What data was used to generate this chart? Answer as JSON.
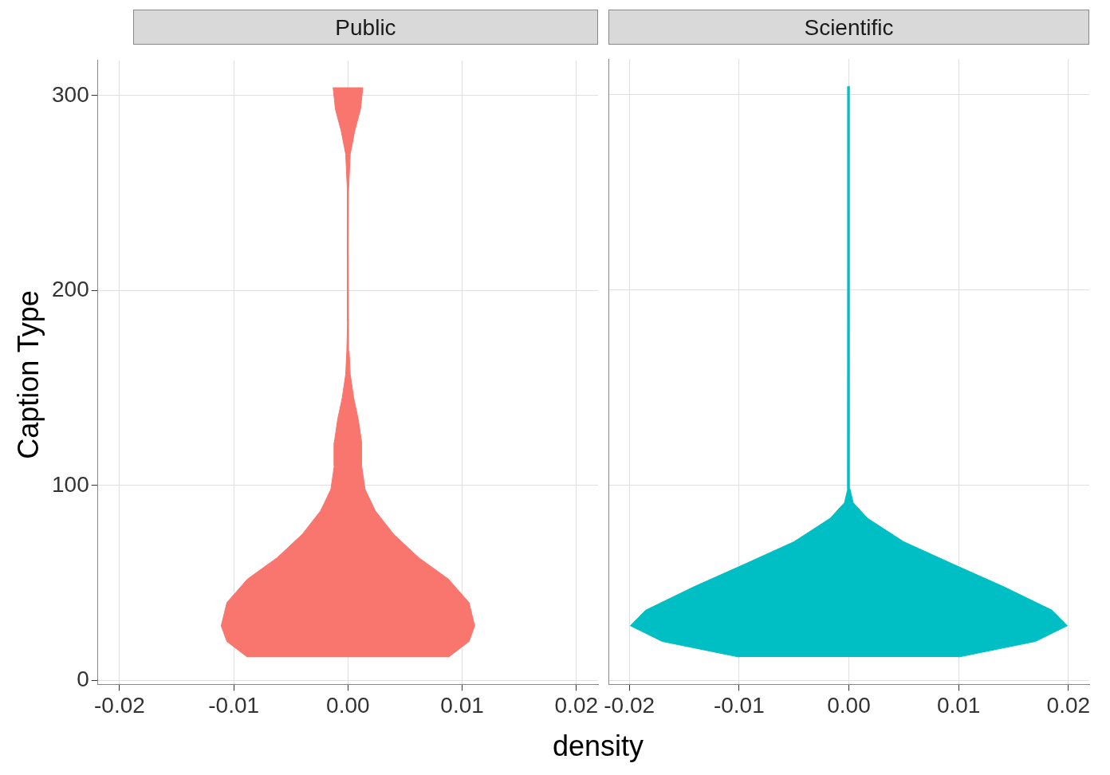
{
  "chart_data": [
    {
      "type": "area",
      "title": "Public",
      "xlabel": "density",
      "ylabel": "Caption Type",
      "xlim": [
        -0.0219,
        0.0219
      ],
      "ylim": [
        -2,
        318
      ],
      "xticks": [
        {
          "value": -0.02,
          "label": "-0.02"
        },
        {
          "value": -0.01,
          "label": "-0.01"
        },
        {
          "value": 0,
          "label": "0.00"
        },
        {
          "value": 0.01,
          "label": "0.01"
        },
        {
          "value": 0.02,
          "label": "0.02"
        }
      ],
      "yticks": [
        0,
        100,
        200,
        300
      ],
      "grid": true,
      "series": [
        {
          "color": "#f8766d",
          "x": [
            0.0088,
            0.0106,
            0.0111,
            0.0106,
            0.0088,
            0.0062,
            0.004,
            0.0024,
            0.0015,
            0.0012,
            0.0012,
            0.0009,
            0.0005,
            0.0002,
            0.0001,
            5e-05,
            3e-05,
            5e-05,
            0.0002,
            0.0006,
            0.0011,
            0.0013,
            -0.0013,
            -0.0011,
            -0.0006,
            -0.0002,
            -5e-05,
            -3e-05,
            -5e-05,
            -0.0001,
            -0.0002,
            -0.0005,
            -0.0009,
            -0.0012,
            -0.0012,
            -0.0015,
            -0.0024,
            -0.004,
            -0.0062,
            -0.0088,
            -0.0106,
            -0.0111,
            -0.0106,
            -0.0088
          ],
          "values": [
            12,
            20,
            28,
            40,
            52,
            63,
            75,
            87,
            98,
            110,
            122,
            134,
            145,
            157,
            169,
            184,
            223,
            251,
            270,
            282,
            293,
            304,
            304,
            293,
            282,
            270,
            251,
            223,
            184,
            169,
            157,
            145,
            134,
            122,
            110,
            98,
            87,
            75,
            63,
            52,
            40,
            28,
            20,
            12
          ]
        }
      ]
    },
    {
      "type": "area",
      "title": "Scientific",
      "xlim": [
        -0.0219,
        0.0219
      ],
      "ylim": [
        -2,
        318
      ],
      "tick_labels": "x",
      "xticks": [
        {
          "value": -0.02,
          "label": "-0.02"
        },
        {
          "value": -0.01,
          "label": "-0.01"
        },
        {
          "value": 0,
          "label": "0.00"
        },
        {
          "value": 0.01,
          "label": "0.01"
        },
        {
          "value": 0.02,
          "label": "0.02"
        }
      ],
      "yticks": [
        0,
        100,
        200,
        300
      ],
      "grid": true,
      "series": [
        {
          "color": "#00bfc4",
          "x": [
            0.01,
            0.017,
            0.0199,
            0.0185,
            0.0141,
            0.0097,
            0.005,
            0.0017,
            0.0004,
            0.0001,
            5e-05,
            -5e-05,
            -0.0001,
            -0.0004,
            -0.0017,
            -0.005,
            -0.0097,
            -0.0141,
            -0.0185,
            -0.0199,
            -0.017,
            -0.01
          ],
          "values": [
            12,
            20,
            28,
            36,
            48,
            59,
            71,
            83,
            91,
            98,
            304,
            304,
            98,
            91,
            83,
            71,
            59,
            48,
            36,
            28,
            20,
            12
          ]
        }
      ]
    }
  ]
}
